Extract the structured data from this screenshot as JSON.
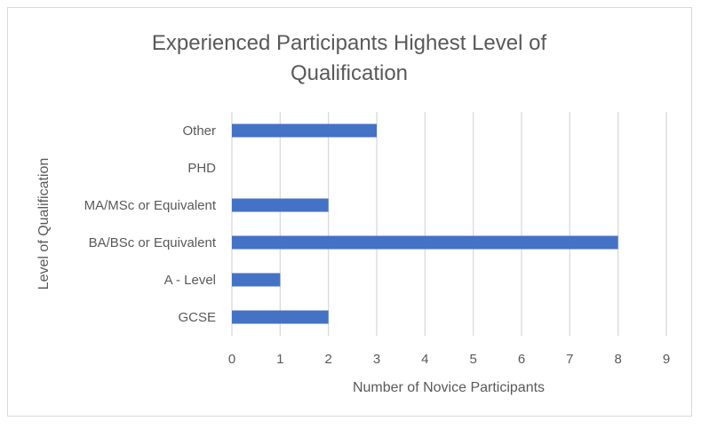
{
  "chart_data": {
    "type": "bar",
    "orientation": "horizontal",
    "title_lines": [
      "Experienced Participants Highest Level of",
      "Qualification"
    ],
    "xlabel": "Number of Novice Participants",
    "ylabel": "Level of Qualification",
    "categories": [
      "GCSE",
      "A - Level",
      "BA/BSc or Equivalent",
      "MA/MSc or Equivalent",
      "PHD",
      "Other"
    ],
    "values": [
      2,
      1,
      8,
      2,
      0,
      3
    ],
    "xlim": [
      0,
      9
    ],
    "xticks": [
      "0",
      "1",
      "2",
      "3",
      "4",
      "5",
      "6",
      "7",
      "8",
      "9"
    ],
    "grid": true,
    "legend": false,
    "bar_color": "#4472c4",
    "grid_color": "#d9d9d9"
  }
}
